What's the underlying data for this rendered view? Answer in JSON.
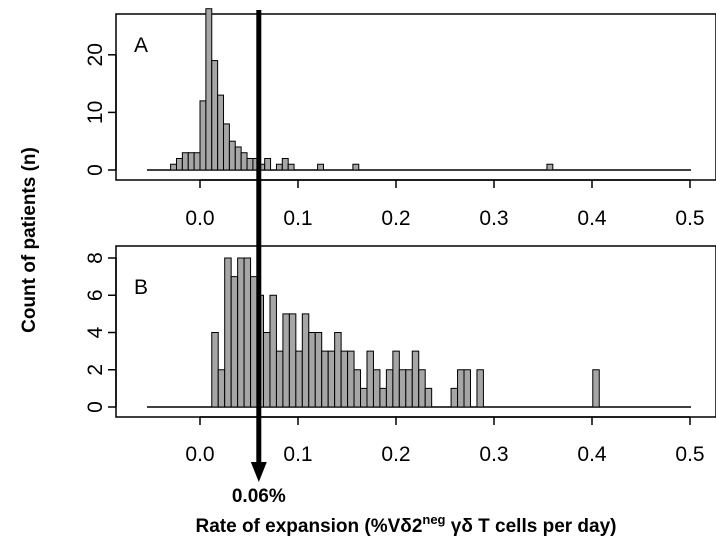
{
  "chart_data": [
    {
      "type": "bar",
      "panel_label": "A",
      "bin_width": 0.006,
      "bins": [
        {
          "x": -0.03,
          "count": 1
        },
        {
          "x": -0.024,
          "count": 2
        },
        {
          "x": -0.018,
          "count": 3
        },
        {
          "x": -0.012,
          "count": 3
        },
        {
          "x": -0.006,
          "count": 3
        },
        {
          "x": 0.0,
          "count": 12
        },
        {
          "x": 0.006,
          "count": 28
        },
        {
          "x": 0.012,
          "count": 19
        },
        {
          "x": 0.018,
          "count": 13
        },
        {
          "x": 0.024,
          "count": 8
        },
        {
          "x": 0.03,
          "count": 5
        },
        {
          "x": 0.036,
          "count": 4
        },
        {
          "x": 0.042,
          "count": 3
        },
        {
          "x": 0.048,
          "count": 2
        },
        {
          "x": 0.054,
          "count": 2
        },
        {
          "x": 0.06,
          "count": 1
        },
        {
          "x": 0.066,
          "count": 2
        },
        {
          "x": 0.078,
          "count": 1
        },
        {
          "x": 0.084,
          "count": 2
        },
        {
          "x": 0.09,
          "count": 1
        },
        {
          "x": 0.12,
          "count": 1
        },
        {
          "x": 0.156,
          "count": 1
        },
        {
          "x": 0.354,
          "count": 1
        }
      ],
      "xlim": [
        -0.05,
        0.5
      ],
      "ylim": [
        0,
        25
      ],
      "x_ticks": [
        "0.0",
        "0.1",
        "0.2",
        "0.3",
        "0.4",
        "0.5"
      ],
      "y_ticks": [
        "0",
        "10",
        "20"
      ]
    },
    {
      "type": "bar",
      "panel_label": "B",
      "bin_width": 0.0066,
      "bins": [
        {
          "x": 0.012,
          "count": 4
        },
        {
          "x": 0.0186,
          "count": 2
        },
        {
          "x": 0.0252,
          "count": 8
        },
        {
          "x": 0.0318,
          "count": 7
        },
        {
          "x": 0.0384,
          "count": 8
        },
        {
          "x": 0.045,
          "count": 8
        },
        {
          "x": 0.0516,
          "count": 7
        },
        {
          "x": 0.0582,
          "count": 6
        },
        {
          "x": 0.0648,
          "count": 4
        },
        {
          "x": 0.0714,
          "count": 6
        },
        {
          "x": 0.078,
          "count": 3
        },
        {
          "x": 0.0846,
          "count": 5
        },
        {
          "x": 0.0912,
          "count": 5
        },
        {
          "x": 0.0978,
          "count": 3
        },
        {
          "x": 0.1044,
          "count": 5
        },
        {
          "x": 0.111,
          "count": 4
        },
        {
          "x": 0.1176,
          "count": 4
        },
        {
          "x": 0.1242,
          "count": 3
        },
        {
          "x": 0.1308,
          "count": 3
        },
        {
          "x": 0.1374,
          "count": 4
        },
        {
          "x": 0.144,
          "count": 3
        },
        {
          "x": 0.1506,
          "count": 3
        },
        {
          "x": 0.1572,
          "count": 2
        },
        {
          "x": 0.1638,
          "count": 1
        },
        {
          "x": 0.1704,
          "count": 3
        },
        {
          "x": 0.177,
          "count": 2
        },
        {
          "x": 0.1836,
          "count": 1
        },
        {
          "x": 0.1902,
          "count": 2
        },
        {
          "x": 0.1968,
          "count": 3
        },
        {
          "x": 0.2034,
          "count": 2
        },
        {
          "x": 0.21,
          "count": 2
        },
        {
          "x": 0.2166,
          "count": 3
        },
        {
          "x": 0.2232,
          "count": 2
        },
        {
          "x": 0.2298,
          "count": 1
        },
        {
          "x": 0.2562,
          "count": 1
        },
        {
          "x": 0.2628,
          "count": 2
        },
        {
          "x": 0.2694,
          "count": 2
        },
        {
          "x": 0.2826,
          "count": 2
        },
        {
          "x": 0.4008,
          "count": 2
        }
      ],
      "xlim": [
        -0.05,
        0.5
      ],
      "ylim": [
        0,
        8
      ],
      "x_ticks": [
        "0.0",
        "0.1",
        "0.2",
        "0.3",
        "0.4",
        "0.5"
      ],
      "y_ticks": [
        "0",
        "2",
        "4",
        "6",
        "8"
      ]
    }
  ],
  "ylabel": "Count  of patients (n)",
  "xlabel": {
    "prefix": "Rate of expansion (%Vδ2",
    "superscript": "neg",
    "suffix": " γδ T cells per day)"
  },
  "threshold": {
    "x": 0.06,
    "label": "0.06%"
  },
  "colors": {
    "bar_fill": "#a6a6a6",
    "bar_stroke": "#000000",
    "line": "#000000"
  }
}
